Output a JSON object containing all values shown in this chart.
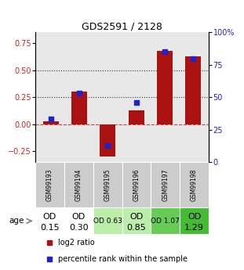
{
  "title": "GDS2591 / 2128",
  "samples": [
    "GSM99193",
    "GSM99194",
    "GSM99195",
    "GSM99196",
    "GSM99197",
    "GSM99198"
  ],
  "log2_ratio": [
    0.03,
    0.3,
    -0.3,
    0.13,
    0.68,
    0.63
  ],
  "percentile_rank": [
    33,
    53,
    13,
    46,
    85,
    80
  ],
  "age_labels_line1": [
    "OD",
    "OD",
    "OD 0.63",
    "OD",
    "OD 1.07",
    "OD"
  ],
  "age_labels_line2": [
    "0.15",
    "0.30",
    "",
    "0.85",
    "",
    "1.29"
  ],
  "age_fontsize_big": 8,
  "age_fontsize_small": 6.5,
  "age_bg_colors": [
    "#ffffff",
    "#ffffff",
    "#bbeeaa",
    "#bbeeaa",
    "#66cc55",
    "#44bb33"
  ],
  "bar_color": "#aa1111",
  "scatter_color": "#2222cc",
  "ylim_left": [
    -0.35,
    0.85
  ],
  "ylim_right": [
    0,
    100
  ],
  "yticks_left": [
    -0.25,
    0.0,
    0.25,
    0.5,
    0.75
  ],
  "yticks_right": [
    0,
    25,
    50,
    75,
    100
  ],
  "ytick_labels_right": [
    "0",
    "25",
    "50",
    "75",
    "100%"
  ],
  "hlines": [
    0.0,
    0.25,
    0.5
  ],
  "hline_styles": [
    "--",
    ":",
    ":"
  ],
  "hline_colors": [
    "#cc4444",
    "#333333",
    "#333333"
  ],
  "plot_bg_color": "#e8e8e8",
  "gsm_bg": "#cccccc",
  "bar_width": 0.55
}
